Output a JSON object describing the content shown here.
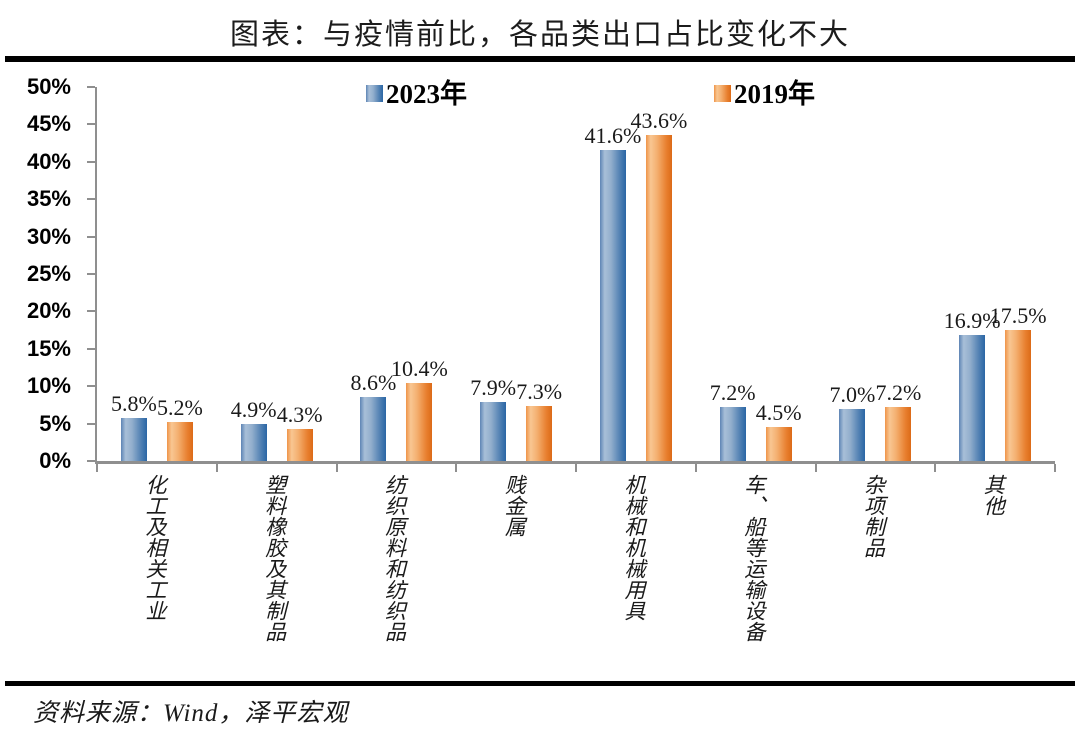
{
  "title": "图表：与疫情前比，各品类出口占比变化不大",
  "source": "资料来源：Wind，泽平宏观",
  "colors": {
    "series_2023_blue": "#2a66a5",
    "series_2023_blue_light": "#a8bfd8",
    "series_2019_orange": "#dc6a17",
    "series_2019_orange_light": "#f8c692",
    "axis_gray": "#8f8f8f",
    "rule_black": "#000000",
    "background": "#ffffff"
  },
  "chart_data": {
    "type": "bar",
    "title": "图表：与疫情前比，各品类出口占比变化不大",
    "categories": [
      "化工及相关工业",
      "塑料橡胶及其制品",
      "纺织原料和纺织品",
      "贱金属",
      "机械和机械用具",
      "车、船等运输设备",
      "杂项制品",
      "其他"
    ],
    "series": [
      {
        "name": "2023年",
        "color": "#2a66a5",
        "values": [
          5.8,
          4.9,
          8.6,
          7.9,
          41.6,
          7.2,
          7.0,
          16.9
        ],
        "labels": [
          "5.8%",
          "4.9%",
          "8.6%",
          "7.9%",
          "41.6%",
          "7.2%",
          "7.0%",
          "16.9%"
        ]
      },
      {
        "name": "2019年",
        "color": "#dc6a17",
        "values": [
          5.2,
          4.3,
          10.4,
          7.3,
          43.6,
          4.5,
          7.2,
          17.5
        ],
        "labels": [
          "5.2%",
          "4.3%",
          "10.4%",
          "7.3%",
          "43.6%",
          "4.5%",
          "7.2%",
          "17.5%"
        ]
      }
    ],
    "xlabel": "",
    "ylabel": "",
    "ylim": [
      0,
      50
    ],
    "ytick_step": 5,
    "ytick_labels": [
      "0%",
      "5%",
      "10%",
      "15%",
      "20%",
      "25%",
      "30%",
      "35%",
      "40%",
      "45%",
      "50%"
    ],
    "grid": false,
    "legend_position": "top",
    "data_labels_shown": true
  }
}
